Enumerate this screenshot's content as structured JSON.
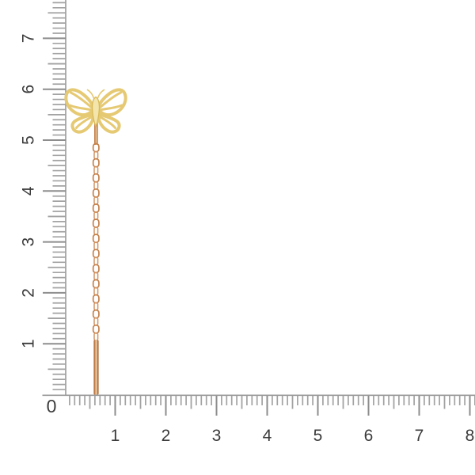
{
  "scene": {
    "type": "product-photo",
    "subject": "Gold butterfly threader chain earring shown against centimeter rulers",
    "background_color": "#ffffff"
  },
  "rulers": {
    "corner_label": "0",
    "horizontal_labels": [
      "1",
      "2",
      "3",
      "4",
      "5",
      "6",
      "7",
      "8"
    ],
    "vertical_labels": [
      "1",
      "2",
      "3",
      "4",
      "5",
      "6",
      "7"
    ],
    "minor_tick_color": "#a2a2a2",
    "major_tick_color": "#8d8d8d",
    "edge_line_color": "#9a9a9a",
    "number_color": "#3b3b3b"
  },
  "earring": {
    "parts": [
      "butterfly-motif",
      "ear-post",
      "cable-chain",
      "threader-bar"
    ],
    "colors": {
      "gold_outline": "#e6c973",
      "gold_edge": "#d9ba58",
      "body_fill": "#f3e5ab",
      "chain_copper": "#c4814c",
      "chain_copper_light": "#d29464",
      "bar_gradient": [
        "#d9975e",
        "#b5713f",
        "#f2dcb8",
        "#c07c44",
        "#a96a3e"
      ]
    }
  }
}
